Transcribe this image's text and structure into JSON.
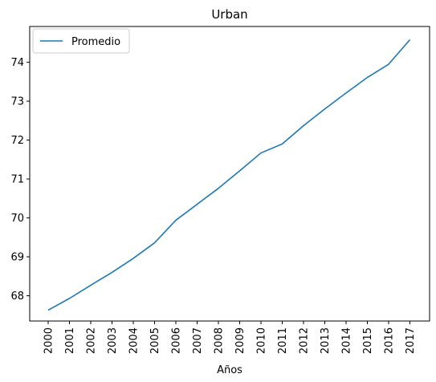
{
  "chart_data": {
    "type": "line",
    "title": "Urban",
    "xlabel": "Años",
    "ylabel": "",
    "x": [
      "2000",
      "2001",
      "2002",
      "2003",
      "2004",
      "2005",
      "2006",
      "2007",
      "2008",
      "2009",
      "2010",
      "2011",
      "2012",
      "2013",
      "2014",
      "2015",
      "2016",
      "2017"
    ],
    "series": [
      {
        "name": "Promedio",
        "color": "#1f77b4",
        "values": [
          67.63,
          67.93,
          68.27,
          68.6,
          68.96,
          69.36,
          69.94,
          70.35,
          70.76,
          71.21,
          71.67,
          71.9,
          72.37,
          72.8,
          73.21,
          73.61,
          73.95,
          74.58
        ]
      }
    ],
    "ylim": [
      67.35,
      74.92
    ],
    "yticks": [
      68,
      69,
      70,
      71,
      72,
      73,
      74
    ],
    "grid": false,
    "legend_position": "top-left",
    "x_tick_rotation": 90
  }
}
